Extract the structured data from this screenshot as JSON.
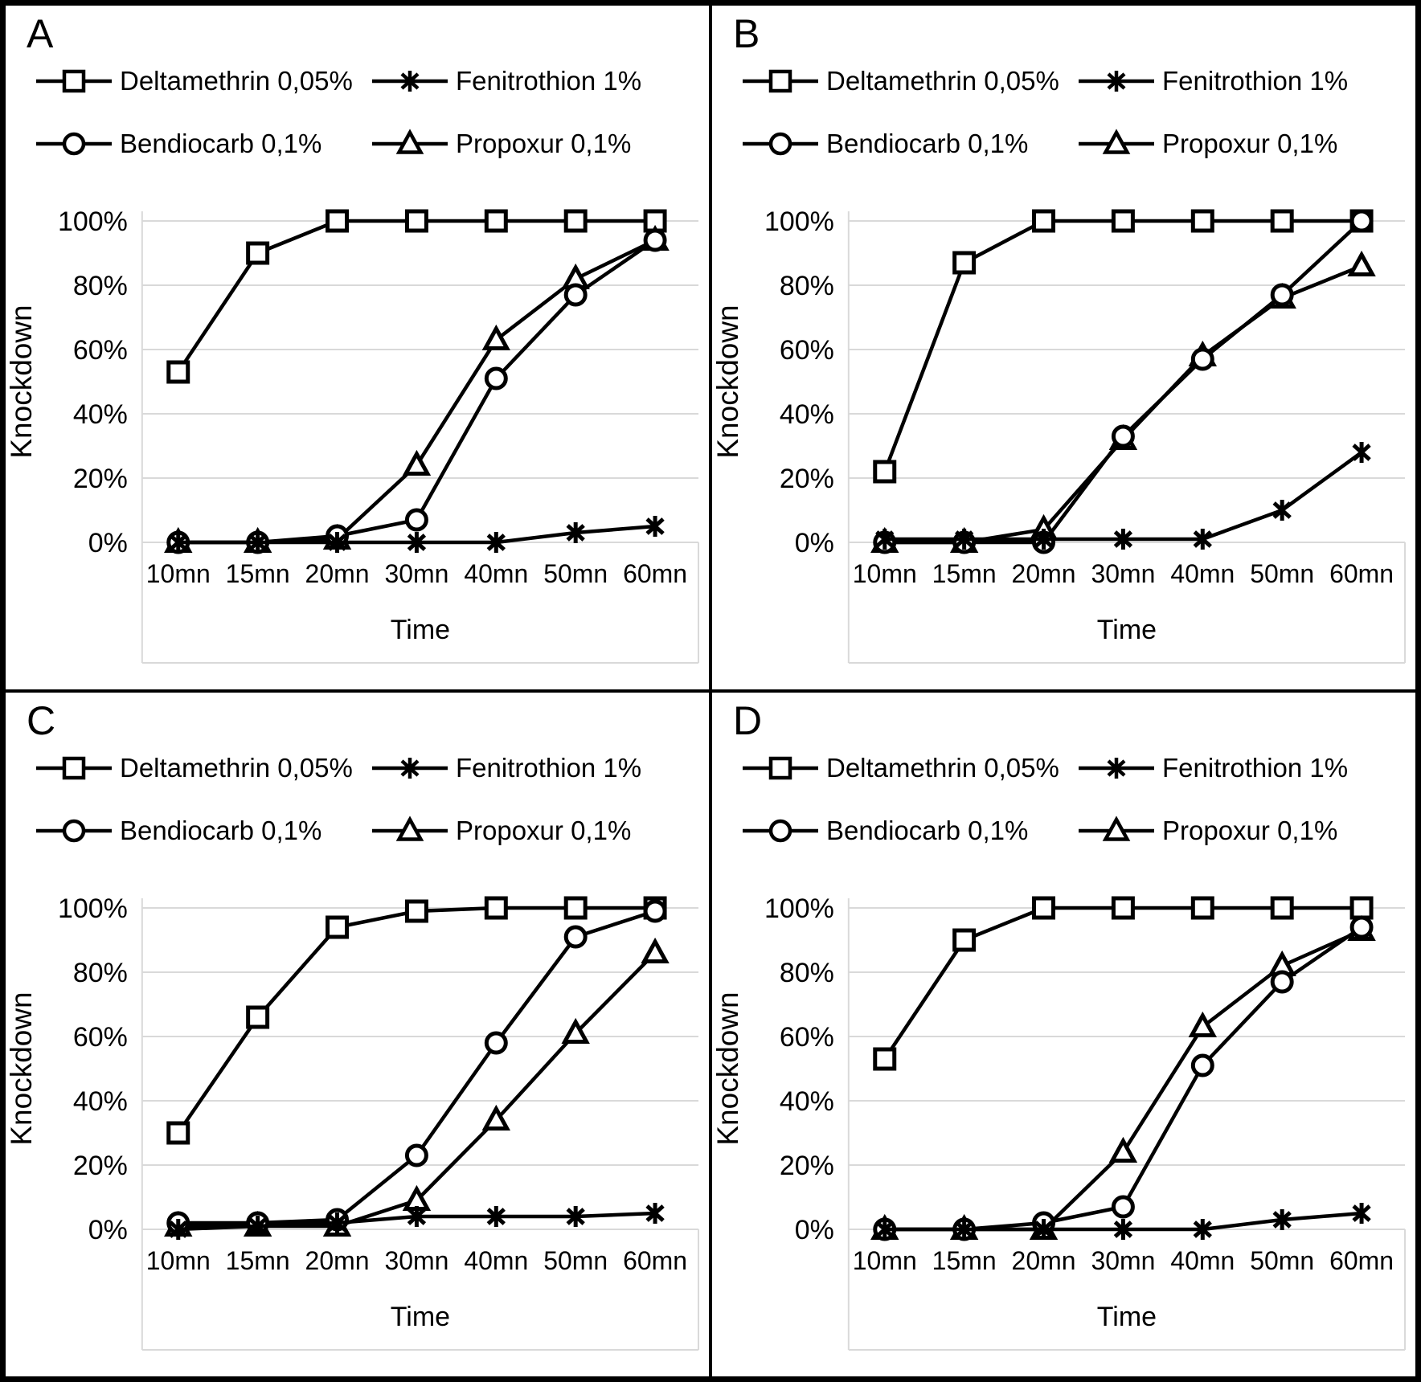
{
  "figure_title": "",
  "colors": {
    "series": "#000000",
    "grid": "#d9d9d9",
    "plot_frame": "#d9d9d9",
    "background": "#ffffff",
    "border": "#000000"
  },
  "chart_data": [
    {
      "type": "line",
      "panel_label": "A",
      "xlabel": "Time",
      "ylabel": "Knockdown",
      "categories": [
        "10mn",
        "15mn",
        "20mn",
        "30mn",
        "40mn",
        "50mn",
        "60mn"
      ],
      "ytick_labels": [
        "0%",
        "20%",
        "40%",
        "60%",
        "80%",
        "100%"
      ],
      "ylim": [
        0,
        100
      ],
      "grid": true,
      "legend_position": "top",
      "series": [
        {
          "name": "Deltamethrin 0,05%",
          "marker": "square",
          "values": [
            53,
            90,
            100,
            100,
            100,
            100,
            100
          ]
        },
        {
          "name": "Fenitrothion 1%",
          "marker": "asterisk",
          "values": [
            0,
            0,
            0,
            0,
            0,
            3,
            5
          ]
        },
        {
          "name": "Bendiocarb 0,1%",
          "marker": "circle",
          "values": [
            0,
            0,
            2,
            7,
            51,
            77,
            94
          ]
        },
        {
          "name": "Propoxur 0,1%",
          "marker": "triangle",
          "values": [
            0,
            0,
            1,
            24,
            63,
            82,
            94
          ]
        }
      ]
    },
    {
      "type": "line",
      "panel_label": "B",
      "xlabel": "Time",
      "ylabel": "Knockdown",
      "categories": [
        "10mn",
        "15mn",
        "20mn",
        "30mn",
        "40mn",
        "50mn",
        "60mn"
      ],
      "ytick_labels": [
        "0%",
        "20%",
        "40%",
        "60%",
        "80%",
        "100%"
      ],
      "ylim": [
        0,
        100
      ],
      "grid": true,
      "legend_position": "top",
      "series": [
        {
          "name": "Deltamethrin 0,05%",
          "marker": "square",
          "values": [
            22,
            87,
            100,
            100,
            100,
            100,
            100
          ]
        },
        {
          "name": "Fenitrothion 1%",
          "marker": "asterisk",
          "values": [
            1,
            1,
            1,
            1,
            1,
            10,
            28
          ]
        },
        {
          "name": "Bendiocarb 0,1%",
          "marker": "circle",
          "values": [
            0,
            0,
            0,
            33,
            57,
            77,
            100
          ]
        },
        {
          "name": "Propoxur 0,1%",
          "marker": "triangle",
          "values": [
            0,
            0,
            4,
            32,
            58,
            76,
            86
          ]
        }
      ]
    },
    {
      "type": "line",
      "panel_label": "C",
      "xlabel": "Time",
      "ylabel": "Knockdown",
      "categories": [
        "10mn",
        "15mn",
        "20mn",
        "30mn",
        "40mn",
        "50mn",
        "60mn"
      ],
      "ytick_labels": [
        "0%",
        "20%",
        "40%",
        "60%",
        "80%",
        "100%"
      ],
      "ylim": [
        0,
        100
      ],
      "grid": true,
      "legend_position": "top",
      "series": [
        {
          "name": "Deltamethrin 0,05%",
          "marker": "square",
          "values": [
            30,
            66,
            94,
            99,
            100,
            100,
            100
          ]
        },
        {
          "name": "Fenitrothion 1%",
          "marker": "asterisk",
          "values": [
            0,
            1,
            2,
            4,
            4,
            4,
            5
          ]
        },
        {
          "name": "Bendiocarb 0,1%",
          "marker": "circle",
          "values": [
            2,
            2,
            3,
            23,
            58,
            91,
            99
          ]
        },
        {
          "name": "Propoxur 0,1%",
          "marker": "triangle",
          "values": [
            1,
            1,
            1,
            9,
            34,
            61,
            86
          ]
        }
      ]
    },
    {
      "type": "line",
      "panel_label": "D",
      "xlabel": "Time",
      "ylabel": "Knockdown",
      "categories": [
        "10mn",
        "15mn",
        "20mn",
        "30mn",
        "40mn",
        "50mn",
        "60mn"
      ],
      "ytick_labels": [
        "0%",
        "20%",
        "40%",
        "60%",
        "80%",
        "100%"
      ],
      "ylim": [
        0,
        100
      ],
      "grid": true,
      "legend_position": "top",
      "series": [
        {
          "name": "Deltamethrin 0,05%",
          "marker": "square",
          "values": [
            53,
            90,
            100,
            100,
            100,
            100,
            100
          ]
        },
        {
          "name": "Fenitrothion 1%",
          "marker": "asterisk",
          "values": [
            0,
            0,
            0,
            0,
            0,
            3,
            5
          ]
        },
        {
          "name": "Bendiocarb 0,1%",
          "marker": "circle",
          "values": [
            0,
            0,
            2,
            7,
            51,
            77,
            94
          ]
        },
        {
          "name": "Propoxur 0,1%",
          "marker": "triangle",
          "values": [
            0,
            0,
            0,
            24,
            63,
            82,
            93
          ]
        }
      ]
    }
  ]
}
